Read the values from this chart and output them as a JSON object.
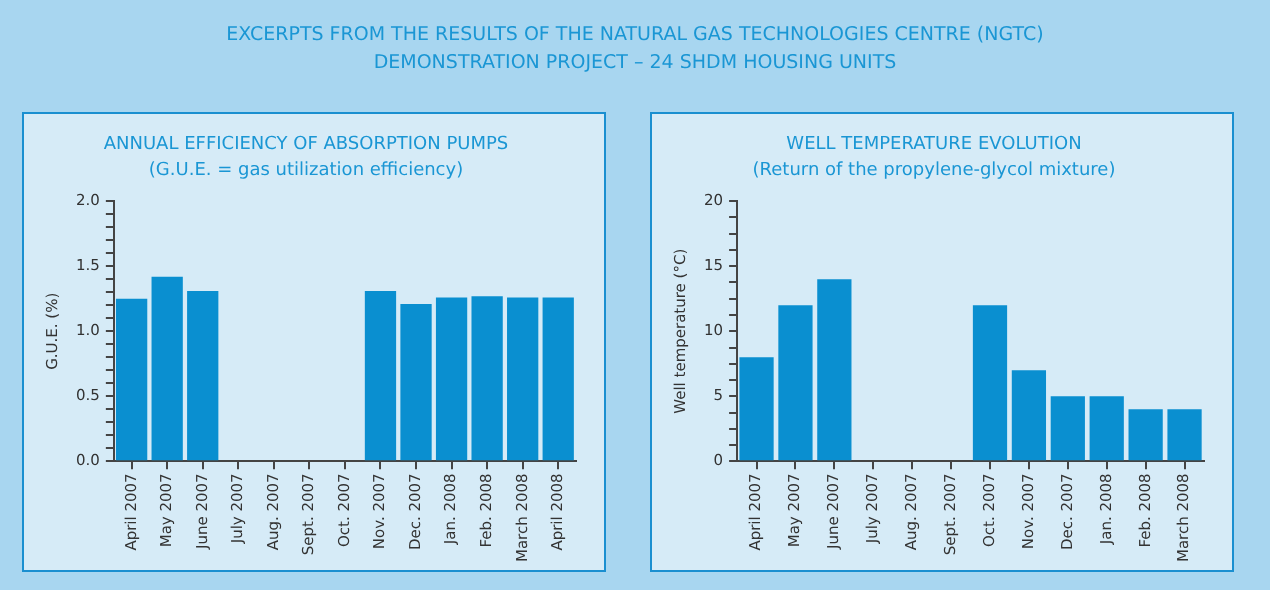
{
  "chart_data": [
    {
      "type": "bar",
      "title": "ANNUAL EFFICIENCY OF ABSORPTION PUMPS",
      "subtitle": "(G.U.E. = gas utilization efficiency)",
      "ylabel": "G.U.E. (%)",
      "annotations": [
        "EXCERPTS FROM THE RESULTS OF THE NATURAL GAS TECHNOLOGIES CENTRE (NGTC)",
        "DEMONSTRATION PROJECT – 24 SHDM HOUSING UNITS"
      ],
      "categories": [
        "April 2007",
        "May 2007",
        "June 2007",
        "July 2007",
        "Aug. 2007",
        "Sept. 2007",
        "Oct. 2007",
        "Nov. 2007",
        "Dec. 2007",
        "Jan. 2008",
        "Feb. 2008",
        "March 2008",
        "April 2008"
      ],
      "values": [
        1.25,
        1.42,
        1.31,
        null,
        null,
        null,
        null,
        1.31,
        1.21,
        1.26,
        1.27,
        1.26,
        1.26
      ],
      "color": "#0a8fd0",
      "ylim": [
        0,
        2
      ],
      "yticks": [
        {
          "value": 0,
          "label": "0.0"
        },
        {
          "value": 0.1,
          "label": null
        },
        {
          "value": 0.2,
          "label": null
        },
        {
          "value": 0.3,
          "label": null
        },
        {
          "value": 0.4,
          "label": null
        },
        {
          "value": 0.5,
          "label": "0.5"
        },
        {
          "value": 0.6,
          "label": null
        },
        {
          "value": 0.7,
          "label": null
        },
        {
          "value": 0.8,
          "label": null
        },
        {
          "value": 0.9,
          "label": null
        },
        {
          "value": 1,
          "label": "1.0"
        },
        {
          "value": 1.1,
          "label": null
        },
        {
          "value": 1.2,
          "label": null
        },
        {
          "value": 1.3,
          "label": null
        },
        {
          "value": 1.4,
          "label": null
        },
        {
          "value": 1.5,
          "label": "1.5"
        },
        {
          "value": 1.6,
          "label": null
        },
        {
          "value": 1.7,
          "label": null
        },
        {
          "value": 1.8,
          "label": null
        },
        {
          "value": 1.9,
          "label": null
        },
        {
          "value": 2,
          "label": "2.0"
        }
      ]
    },
    {
      "type": "bar",
      "title": "WELL TEMPERATURE EVOLUTION",
      "subtitle": "(Return of the propylene-glycol mixture)",
      "ylabel": "Well temperature (°C)",
      "categories": [
        "April 2007",
        "May 2007",
        "June 2007",
        "July 2007",
        "Aug. 2007",
        "Sept. 2007",
        "Oct. 2007",
        "Nov. 2007",
        "Dec. 2007",
        "Jan. 2008",
        "Feb. 2008",
        "March 2008"
      ],
      "values": [
        8,
        12,
        14,
        null,
        null,
        null,
        12,
        7,
        5,
        5,
        4,
        4
      ],
      "color": "#0a8fd0",
      "ylim": [
        0,
        20
      ],
      "yticks": [
        0,
        {
          "value": 1.25,
          "label": null
        },
        {
          "value": 2.5,
          "label": null
        },
        {
          "value": 3.75,
          "label": null
        },
        5,
        {
          "value": 6.25,
          "label": null
        },
        {
          "value": 7.5,
          "label": null
        },
        {
          "value": 8.75,
          "label": null
        },
        10,
        {
          "value": 11.25,
          "label": null
        },
        {
          "value": 12.5,
          "label": null
        },
        {
          "value": 13.75,
          "label": null
        },
        15,
        {
          "value": 16.25,
          "label": null
        },
        {
          "value": 17.5,
          "label": null
        },
        {
          "value": 18.75,
          "label": null
        },
        20
      ]
    }
  ]
}
